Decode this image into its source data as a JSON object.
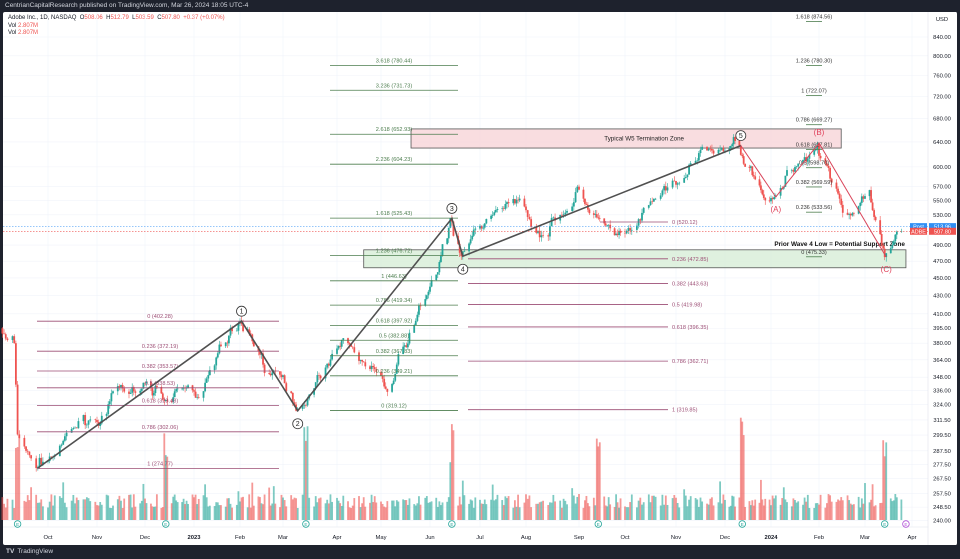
{
  "header": {
    "published": "CentrianCapitalResearch published on TradingView.com, Mar 26, 2024 18:05 UTC-4"
  },
  "legend": {
    "symbol": "Adobe Inc., 1D, NASDAQ",
    "o_label": "O",
    "open": "508.06",
    "h_label": "H",
    "high": "512.79",
    "l_label": "L",
    "low": "503.59",
    "c_label": "C",
    "close": "507.80",
    "change": "+0.37 (+0.07%)",
    "vol_label": "Vol",
    "vol1": "2.807M",
    "vol2": "2.807M"
  },
  "footer": {
    "logo": "TradingView"
  },
  "colors": {
    "up": "#26a69a",
    "down": "#ef5350",
    "fib_green": "#4c7d4e",
    "fib_purple": "#9c4d74",
    "wave_line": "#505050",
    "abc_line": "#d9455a",
    "pink_zone": "#f8d7db",
    "green_zone": "#d9eed9",
    "post_badge": "#2f8ff5"
  },
  "chart_data": {
    "type": "candlestick",
    "scale": "log",
    "currency_label": "USD",
    "ylim": [
      240,
      870
    ],
    "y_ticks": [
      "840.00",
      "800.00",
      "760.00",
      "720.00",
      "680.00",
      "640.00",
      "600.00",
      "570.00",
      "550.00",
      "530.00",
      "490.00",
      "470.00",
      "450.00",
      "430.00",
      "410.00",
      "395.00",
      "380.00",
      "364.00",
      "348.00",
      "336.00",
      "324.00",
      "311.50",
      "299.50",
      "287.50",
      "277.50",
      "267.50",
      "257.50",
      "248.50",
      "240.00"
    ],
    "x_ticks": [
      "Oct",
      "Nov",
      "Dec",
      "2023",
      "Feb",
      "Mar",
      "Apr",
      "May",
      "Jun",
      "Jul",
      "Aug",
      "Sep",
      "Oct",
      "Nov",
      "Dec",
      "2024",
      "Feb",
      "Mar",
      "Apr"
    ],
    "grid": true,
    "price_path": [
      {
        "date": "2022-09-06",
        "price": 395
      },
      {
        "date": "2022-09-14",
        "price": 380
      },
      {
        "date": "2022-09-16",
        "price": 300
      },
      {
        "date": "2022-09-27",
        "price": 275
      },
      {
        "date": "2022-11-15",
        "price": 340
      },
      {
        "date": "2023-01-05",
        "price": 330
      },
      {
        "date": "2023-02-02",
        "price": 402.28
      },
      {
        "date": "2023-02-16",
        "price": 370
      },
      {
        "date": "2023-03-10",
        "price": 319
      },
      {
        "date": "2023-04-10",
        "price": 385
      },
      {
        "date": "2023-05-08",
        "price": 335
      },
      {
        "date": "2023-06-02",
        "price": 440
      },
      {
        "date": "2023-06-15",
        "price": 525
      },
      {
        "date": "2023-06-22",
        "price": 476
      },
      {
        "date": "2023-07-20",
        "price": 545
      },
      {
        "date": "2023-08-10",
        "price": 500
      },
      {
        "date": "2023-09-01",
        "price": 570
      },
      {
        "date": "2023-10-03",
        "price": 505
      },
      {
        "date": "2023-11-15",
        "price": 610
      },
      {
        "date": "2023-12-12",
        "price": 634
      },
      {
        "date": "2024-01-05",
        "price": 555
      },
      {
        "date": "2024-02-01",
        "price": 638
      },
      {
        "date": "2024-02-20",
        "price": 530
      },
      {
        "date": "2024-03-05",
        "price": 565
      },
      {
        "date": "2024-03-15",
        "price": 475
      },
      {
        "date": "2024-03-26",
        "price": 507.8
      }
    ],
    "last_close": 507.8,
    "post_price": 513.96,
    "price_badges": [
      {
        "label": "Post",
        "value": "513.96"
      },
      {
        "label": "ADBE",
        "value": "507.80"
      }
    ],
    "earnings_markers": [
      {
        "date": "2022-09-15",
        "label": "E"
      },
      {
        "date": "2022-12-15",
        "label": "E"
      },
      {
        "date": "2023-03-15",
        "label": "E"
      },
      {
        "date": "2023-06-15",
        "label": "E"
      },
      {
        "date": "2023-09-14",
        "label": "E"
      },
      {
        "date": "2023-12-13",
        "label": "E"
      },
      {
        "date": "2024-03-14",
        "label": "E"
      },
      {
        "date": "2024-03-28",
        "label": "E"
      }
    ],
    "fib_sets": [
      {
        "name": "wave1-retracement",
        "color": "purple",
        "levels": [
          {
            "text": "0 (402.28)",
            "price": 402.28
          },
          {
            "text": "0.236 (372.19)",
            "price": 372.19
          },
          {
            "text": "0.382 (353.57)",
            "price": 353.57
          },
          {
            "text": "0.5 (338.53)",
            "price": 338.53
          },
          {
            "text": "0.618 (323.48)",
            "price": 323.48
          },
          {
            "text": "0.786 (302.06)",
            "price": 302.06
          },
          {
            "text": "1 (274.77)",
            "price": 274.77
          }
        ]
      },
      {
        "name": "wave3-extension",
        "color": "green",
        "levels": [
          {
            "text": "3.618 (780.44)",
            "price": 780.44
          },
          {
            "text": "3.236 (731.73)",
            "price": 731.73
          },
          {
            "text": "2.618 (652.93)",
            "price": 652.93
          },
          {
            "text": "2.236 (604.23)",
            "price": 604.23
          },
          {
            "text": "1.618 (525.43)",
            "price": 525.43
          },
          {
            "text": "1.236 (476.72)",
            "price": 476.72
          },
          {
            "text": "1 (446.63)",
            "price": 446.63
          },
          {
            "text": "0.786 (419.34)",
            "price": 419.34
          },
          {
            "text": "0.618 (397.92)",
            "price": 397.92
          },
          {
            "text": "0.5 (382.88)",
            "price": 382.88
          },
          {
            "text": "0.382 (367.83)",
            "price": 367.83
          },
          {
            "text": "0.236 (349.21)",
            "price": 349.21
          },
          {
            "text": "0 (319.12)",
            "price": 319.12
          }
        ]
      },
      {
        "name": "wave3-retracement",
        "color": "purple",
        "levels": [
          {
            "text": "0 (520.12)",
            "price": 520.12
          },
          {
            "text": "0.236 (472.85)",
            "price": 472.85
          },
          {
            "text": "0.382 (443.63)",
            "price": 443.63
          },
          {
            "text": "0.5 (419.98)",
            "price": 419.98
          },
          {
            "text": "0.618 (396.35)",
            "price": 396.35
          },
          {
            "text": "0.786 (362.71)",
            "price": 362.71
          },
          {
            "text": "1 (319.85)",
            "price": 319.85
          }
        ]
      },
      {
        "name": "wave5-extension",
        "color": "green",
        "levels": [
          {
            "text": "1.618 (874.56)",
            "price": 874.56
          },
          {
            "text": "1.236 (780.30)",
            "price": 780.3
          },
          {
            "text": "1 (722.07)",
            "price": 722.07
          },
          {
            "text": "0.786 (669.27)",
            "price": 669.27
          },
          {
            "text": "0.618 (627.81)",
            "price": 627.81
          },
          {
            "text": "0.5 (598.70)",
            "price": 598.7
          },
          {
            "text": "0.382 (569.59)",
            "price": 569.59
          },
          {
            "text": "0.236 (533.56)",
            "price": 533.56
          },
          {
            "text": "0 (475.33)",
            "price": 475.33
          }
        ]
      }
    ],
    "zones": [
      {
        "label": "Typical W5 Termination Zone",
        "from": 630,
        "to": 662,
        "start": "2023-05-20",
        "end": "2024-02-15",
        "color": "pink"
      },
      {
        "label": "Prior Wave 4 Low = Potential Support Zone",
        "from": 462,
        "to": 484,
        "start": "2023-04-20",
        "end": "2024-03-28",
        "color": "green"
      }
    ],
    "wave_labels": [
      {
        "label": "1",
        "date": "2023-02-02",
        "price": 402.28
      },
      {
        "label": "2",
        "date": "2023-03-10",
        "price": 319
      },
      {
        "label": "3",
        "date": "2023-06-15",
        "price": 525
      },
      {
        "label": "4",
        "date": "2023-06-22",
        "price": 476
      },
      {
        "label": "5",
        "date": "2023-12-12",
        "price": 634
      },
      {
        "label": "(A)",
        "date": "2024-01-05",
        "price": 555
      },
      {
        "label": "(B)",
        "date": "2024-02-01",
        "price": 638
      },
      {
        "label": "(C)",
        "date": "2024-03-15",
        "price": 475
      }
    ]
  }
}
